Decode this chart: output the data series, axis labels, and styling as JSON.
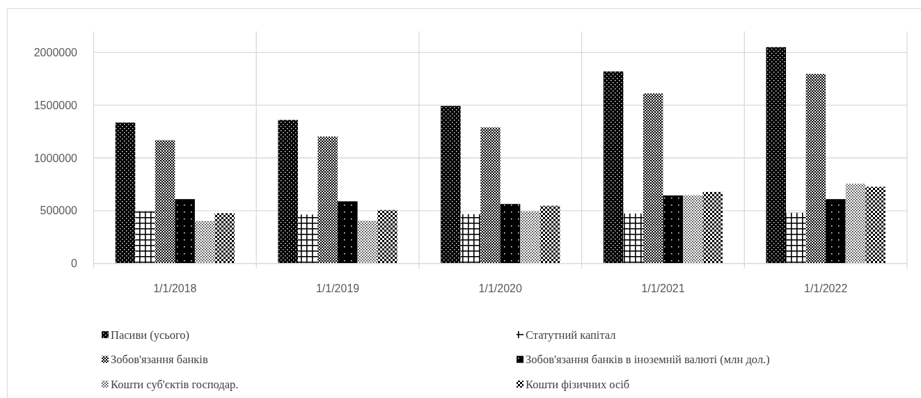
{
  "chart_data": {
    "type": "bar",
    "categories": [
      "1/1/2018",
      "1/1/2019",
      "1/1/2020",
      "1/1/2021",
      "1/1/2022"
    ],
    "series": [
      {
        "name": "Пасиви (усього)",
        "color": "#000000",
        "values": [
          1335000,
          1360000,
          1493000,
          1820000,
          2050000
        ]
      },
      {
        "name": "Статутний капітал",
        "color": "#000000",
        "values": [
          495000,
          464000,
          468000,
          474000,
          481000
        ]
      },
      {
        "name": "Зобов'язання банків",
        "color": "#000000",
        "values": [
          1168000,
          1203000,
          1289000,
          1611000,
          1796000
        ]
      },
      {
        "name": "Зобов'язання банків в іноземній валюті (млн дол.)",
        "color": "#000000",
        "values": [
          610000,
          589000,
          564000,
          645000,
          610000
        ]
      },
      {
        "name": "Кошти суб'єктів господар.",
        "color": "#000000",
        "values": [
          404000,
          406000,
          494000,
          647000,
          755000
        ]
      },
      {
        "name": "Кошти фізичних осіб",
        "color": "#000000",
        "values": [
          477000,
          507000,
          547000,
          678000,
          727000
        ]
      }
    ],
    "ylim": [
      0,
      2200000
    ],
    "yticks": [
      0,
      500000,
      1000000,
      1500000,
      2000000
    ],
    "grid": true,
    "legend": "bottom"
  }
}
